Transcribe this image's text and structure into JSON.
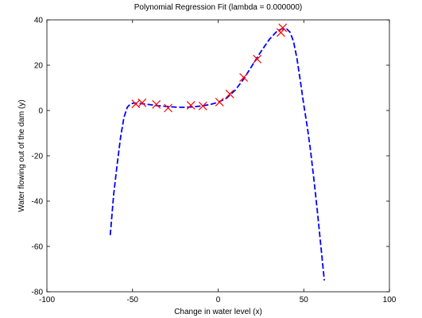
{
  "chart_data": {
    "type": "scatter",
    "title": "Polynomial Regression Fit (lambda = 0.000000)",
    "xlabel": "Change in water level (x)",
    "ylabel": "Water flowing out of the dam (y)",
    "xlim": [
      -100,
      100
    ],
    "ylim": [
      -80,
      40
    ],
    "xticks": [
      -100,
      -50,
      0,
      50,
      100
    ],
    "yticks": [
      -80,
      -60,
      -40,
      -20,
      0,
      20,
      40
    ],
    "xtick_labels": [
      "-100",
      "-50",
      "0",
      "50",
      "100"
    ],
    "ytick_labels": [
      "-80",
      "-60",
      "-40",
      "-20",
      "0",
      "20",
      "40"
    ],
    "grid": false,
    "legend": "none",
    "series": [
      {
        "kind": "scatter",
        "marker": "x",
        "color": "#ff0000",
        "x": [
          -48.1,
          -44.4,
          -36.1,
          -29.2,
          -15.9,
          -8.9,
          0.8,
          6.8,
          14.9,
          22.8,
          36.6,
          37.7
        ],
        "y": [
          2.9,
          3.4,
          2.7,
          1.1,
          2.3,
          2.0,
          3.7,
          7.3,
          14.6,
          22.7,
          34.4,
          36.5
        ]
      },
      {
        "kind": "line",
        "style": "dashed",
        "color": "#0000ff",
        "x": [
          -63,
          -61,
          -59,
          -57,
          -55,
          -53,
          -51,
          -49,
          -47,
          -44,
          -40,
          -35,
          -30,
          -25,
          -20,
          -15,
          -10,
          -5,
          0,
          5,
          10,
          15,
          20,
          25,
          30,
          34,
          37,
          40,
          42,
          44,
          46,
          48,
          50,
          52,
          54,
          56,
          58,
          60,
          62
        ],
        "y": [
          -55,
          -37,
          -24,
          -12,
          -3,
          1.5,
          3.0,
          3.3,
          3.2,
          3.0,
          2.6,
          2.1,
          1.8,
          1.5,
          1.4,
          1.6,
          2.0,
          2.6,
          3.6,
          5.5,
          9.0,
          14.0,
          20.0,
          26.0,
          31.5,
          34.7,
          36.0,
          36.0,
          34.5,
          30.5,
          23.0,
          13.0,
          2.5,
          -7,
          -18,
          -31,
          -45,
          -60,
          -75
        ]
      }
    ]
  }
}
